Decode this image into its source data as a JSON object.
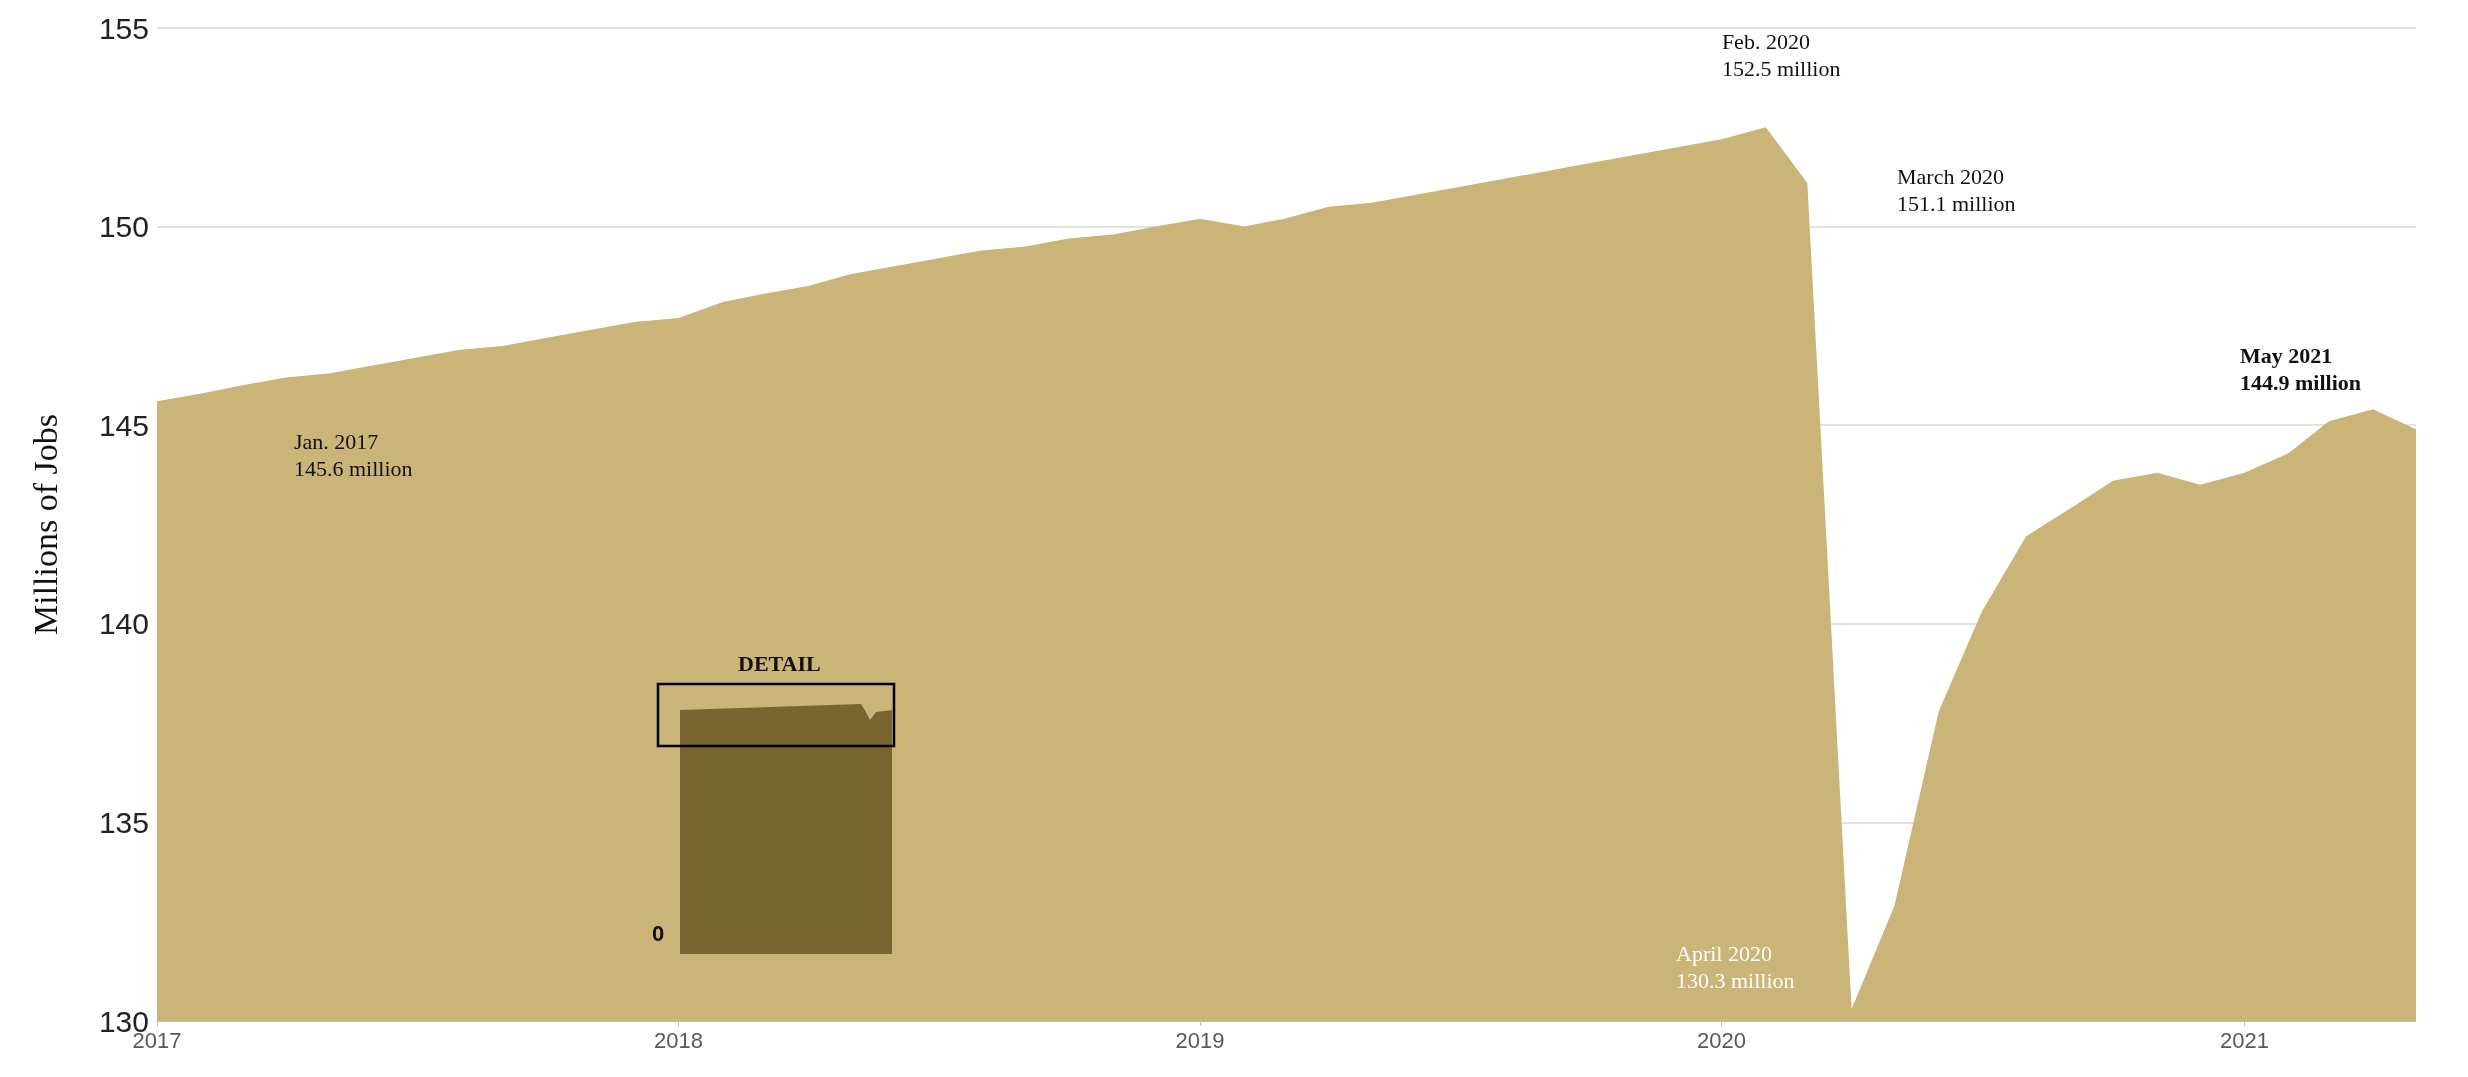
{
  "chart_data": {
    "type": "area",
    "ylabel": "Millions of Jobs",
    "x": [
      "2017-01",
      "2017-02",
      "2017-03",
      "2017-04",
      "2017-05",
      "2017-06",
      "2017-07",
      "2017-08",
      "2017-09",
      "2017-10",
      "2017-11",
      "2017-12",
      "2018-01",
      "2018-02",
      "2018-03",
      "2018-04",
      "2018-05",
      "2018-06",
      "2018-07",
      "2018-08",
      "2018-09",
      "2018-10",
      "2018-11",
      "2018-12",
      "2019-01",
      "2019-02",
      "2019-03",
      "2019-04",
      "2019-05",
      "2019-06",
      "2019-07",
      "2019-08",
      "2019-09",
      "2019-10",
      "2019-11",
      "2019-12",
      "2020-01",
      "2020-02",
      "2020-03",
      "2020-04",
      "2020-05",
      "2020-06",
      "2020-07",
      "2020-08",
      "2020-09",
      "2020-10",
      "2020-11",
      "2020-12",
      "2021-01",
      "2021-02",
      "2021-03",
      "2021-04",
      "2021-05"
    ],
    "series": [
      {
        "color": "#cbb478",
        "values": [
          145.6,
          145.8,
          146.0,
          146.2,
          146.3,
          146.5,
          146.7,
          146.9,
          147.0,
          147.2,
          147.4,
          147.6,
          147.7,
          148.1,
          148.3,
          148.5,
          148.8,
          149.0,
          149.2,
          149.4,
          149.5,
          149.7,
          149.8,
          150.0,
          150.2,
          150.0,
          150.2,
          150.5,
          150.6,
          150.8,
          151.0,
          151.2,
          151.4,
          151.6,
          151.8,
          152.0,
          152.2,
          152.5,
          151.1,
          130.3,
          132.9,
          137.8,
          140.3,
          142.2,
          142.9,
          143.6,
          143.8,
          143.5,
          143.8,
          144.3,
          145.1,
          145.4,
          144.9
        ]
      }
    ],
    "xlim": [
      "2017-01",
      "2021-05"
    ],
    "xticks": [
      "2017",
      "2018",
      "2019",
      "2020",
      "2021"
    ],
    "ylim": [
      130,
      155
    ],
    "yticks": [
      130,
      135,
      140,
      145,
      150,
      155
    ],
    "grid": "y",
    "annotations": [
      "Jan. 2017\n145.6 million",
      {
        "text": "Feb. 2020\n152.5 million",
        "x": "2020-02",
        "y": 152.5
      },
      "March 2020\n151.1 million",
      "April 2020\n130.3 million",
      "May 2021\n144.9 million",
      "DETAIL",
      "0"
    ]
  }
}
